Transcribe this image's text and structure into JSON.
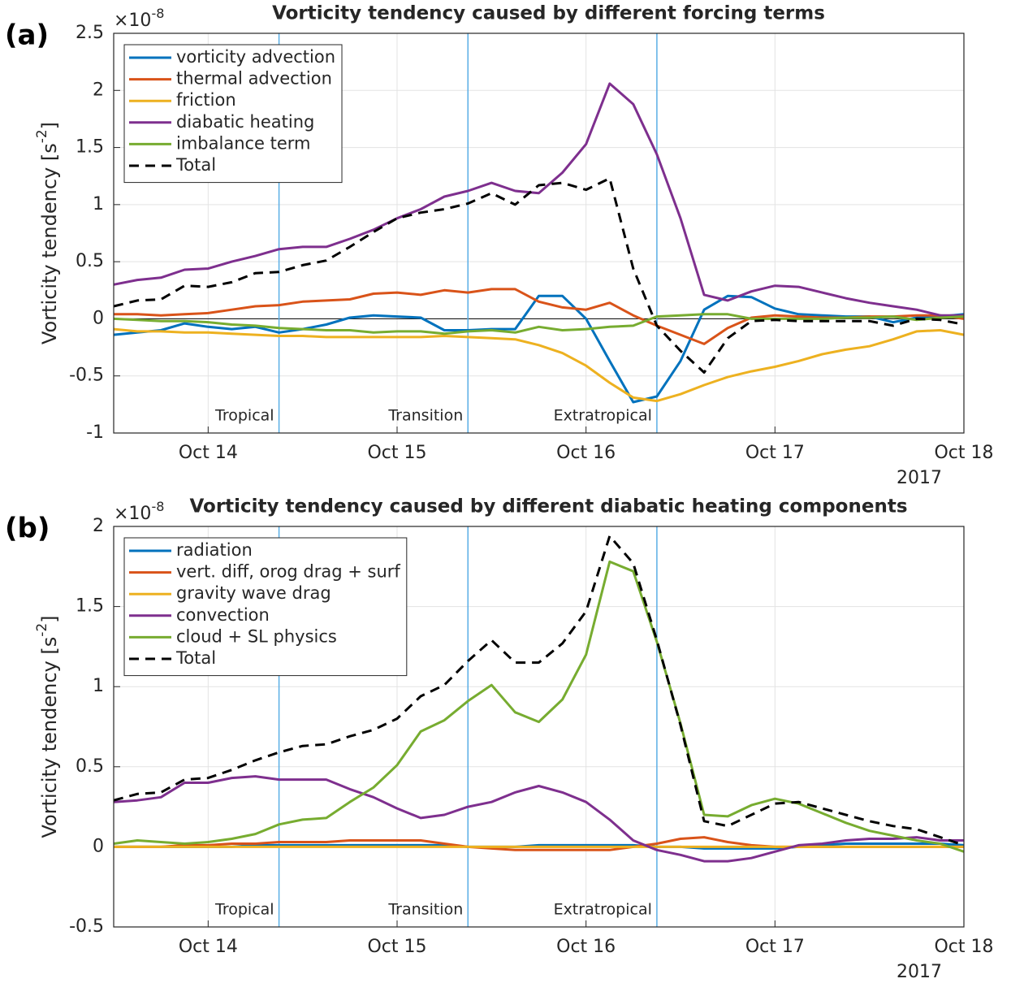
{
  "chart_data": [
    {
      "type": "line",
      "panel_label": "(a)",
      "title": "Vorticity tendency caused by different forcing terms",
      "y_scale_label": "×10",
      "y_scale_exponent": "-8",
      "ylabel": "Vorticity tendency [s",
      "ylabel_exponent": "-2",
      "ylabel_suffix": "]",
      "xlabel": "2017",
      "x": [
        13.5,
        13.625,
        13.75,
        13.875,
        14,
        14.125,
        14.25,
        14.375,
        14.5,
        14.625,
        14.75,
        14.875,
        15,
        15.125,
        15.25,
        15.375,
        15.5,
        15.625,
        15.75,
        15.875,
        16,
        16.125,
        16.25,
        16.375,
        16.5,
        16.625,
        16.75,
        16.875,
        17,
        17.125,
        17.25,
        17.375,
        17.5,
        17.625,
        17.75,
        17.875,
        18
      ],
      "xlim": [
        13.5,
        18
      ],
      "xticks": [
        {
          "value": 14,
          "label": "Oct 14"
        },
        {
          "value": 15,
          "label": "Oct 15"
        },
        {
          "value": 16,
          "label": "Oct 16"
        },
        {
          "value": 17,
          "label": "Oct 17"
        },
        {
          "value": 18,
          "label": "Oct 18"
        }
      ],
      "ylim": [
        -1,
        2.5
      ],
      "yticks": [
        -1,
        -0.5,
        0,
        0.5,
        1,
        1.5,
        2,
        2.5
      ],
      "grid": true,
      "legend": "upper-left",
      "hlines": [
        0
      ],
      "vlines": [
        14.375,
        15.375,
        16.375
      ],
      "phases": [
        "Tropical",
        "Transition",
        "Extratropical"
      ],
      "series": [
        {
          "name": "vorticity advection",
          "color": "#0072bd",
          "values": [
            -0.14,
            -0.12,
            -0.1,
            -0.04,
            -0.07,
            -0.09,
            -0.07,
            -0.12,
            -0.09,
            -0.05,
            0.01,
            0.03,
            0.02,
            0.01,
            -0.1,
            -0.1,
            -0.09,
            -0.09,
            0.2,
            0.2,
            0.0,
            -0.37,
            -0.73,
            -0.68,
            -0.37,
            0.08,
            0.2,
            0.19,
            0.09,
            0.04,
            0.03,
            0.02,
            0.02,
            -0.03,
            0.01,
            0.02,
            0.04
          ]
        },
        {
          "name": "thermal advection",
          "color": "#d95319",
          "values": [
            0.04,
            0.04,
            0.03,
            0.04,
            0.05,
            0.08,
            0.11,
            0.12,
            0.15,
            0.16,
            0.17,
            0.22,
            0.23,
            0.21,
            0.25,
            0.23,
            0.26,
            0.26,
            0.15,
            0.1,
            0.08,
            0.14,
            0.03,
            -0.06,
            -0.14,
            -0.22,
            -0.08,
            0.01,
            0.03,
            0.02,
            0.01,
            0.01,
            0.02,
            0.02,
            0.03,
            0.03,
            0.0
          ]
        },
        {
          "name": "friction",
          "color": "#edb120",
          "values": [
            -0.09,
            -0.11,
            -0.11,
            -0.12,
            -0.12,
            -0.13,
            -0.14,
            -0.15,
            -0.15,
            -0.16,
            -0.16,
            -0.16,
            -0.16,
            -0.16,
            -0.15,
            -0.16,
            -0.17,
            -0.18,
            -0.23,
            -0.3,
            -0.41,
            -0.56,
            -0.69,
            -0.72,
            -0.66,
            -0.58,
            -0.51,
            -0.46,
            -0.42,
            -0.37,
            -0.31,
            -0.27,
            -0.24,
            -0.18,
            -0.11,
            -0.1,
            -0.14
          ]
        },
        {
          "name": "diabatic heating",
          "color": "#7e2f8e",
          "values": [
            0.3,
            0.34,
            0.36,
            0.43,
            0.44,
            0.5,
            0.55,
            0.61,
            0.63,
            0.63,
            0.7,
            0.78,
            0.88,
            0.96,
            1.07,
            1.12,
            1.19,
            1.12,
            1.1,
            1.28,
            1.53,
            2.06,
            1.88,
            1.44,
            0.88,
            0.21,
            0.16,
            0.24,
            0.29,
            0.28,
            0.23,
            0.18,
            0.14,
            0.11,
            0.08,
            0.03,
            0.03
          ]
        },
        {
          "name": "imbalance term",
          "color": "#77ac30",
          "values": [
            0.0,
            -0.01,
            -0.02,
            -0.02,
            -0.03,
            -0.05,
            -0.06,
            -0.08,
            -0.09,
            -0.1,
            -0.1,
            -0.12,
            -0.11,
            -0.11,
            -0.13,
            -0.11,
            -0.1,
            -0.12,
            -0.07,
            -0.1,
            -0.09,
            -0.07,
            -0.06,
            0.02,
            0.03,
            0.04,
            0.04,
            0.0,
            0.0,
            0.0,
            0.0,
            0.01,
            0.01,
            0.02,
            -0.01,
            0.01,
            0.02
          ]
        },
        {
          "name": "Total",
          "color": "#000000",
          "dashed": true,
          "values": [
            0.11,
            0.16,
            0.17,
            0.29,
            0.28,
            0.32,
            0.4,
            0.41,
            0.47,
            0.51,
            0.63,
            0.76,
            0.88,
            0.93,
            0.96,
            1.01,
            1.1,
            1.0,
            1.17,
            1.19,
            1.13,
            1.23,
            0.44,
            -0.06,
            -0.28,
            -0.47,
            -0.17,
            -0.02,
            -0.01,
            -0.02,
            -0.02,
            -0.02,
            -0.02,
            -0.06,
            0.0,
            -0.01,
            -0.05
          ]
        }
      ]
    },
    {
      "type": "line",
      "panel_label": "(b)",
      "title": "Vorticity tendency caused by different diabatic heating components",
      "y_scale_label": "×10",
      "y_scale_exponent": "-8",
      "ylabel": "Vorticity tendency [s",
      "ylabel_exponent": "-2",
      "ylabel_suffix": "]",
      "xlabel": "2017",
      "x": [
        13.5,
        13.625,
        13.75,
        13.875,
        14,
        14.125,
        14.25,
        14.375,
        14.5,
        14.625,
        14.75,
        14.875,
        15,
        15.125,
        15.25,
        15.375,
        15.5,
        15.625,
        15.75,
        15.875,
        16,
        16.125,
        16.25,
        16.375,
        16.5,
        16.625,
        16.75,
        16.875,
        17,
        17.125,
        17.25,
        17.375,
        17.5,
        17.625,
        17.75,
        17.875,
        18
      ],
      "xlim": [
        13.5,
        18
      ],
      "xticks": [
        {
          "value": 14,
          "label": "Oct 14"
        },
        {
          "value": 15,
          "label": "Oct 15"
        },
        {
          "value": 16,
          "label": "Oct 16"
        },
        {
          "value": 17,
          "label": "Oct 17"
        },
        {
          "value": 18,
          "label": "Oct 18"
        }
      ],
      "ylim": [
        -0.5,
        2
      ],
      "yticks": [
        -0.5,
        0,
        0.5,
        1,
        1.5,
        2
      ],
      "grid": true,
      "legend": "upper-left",
      "hlines": [
        0
      ],
      "vlines": [
        14.375,
        15.375,
        16.375
      ],
      "phases": [
        "Tropical",
        "Transition",
        "Extratropical"
      ],
      "series": [
        {
          "name": "radiation",
          "color": "#0072bd",
          "values": [
            0.0,
            0.0,
            0.0,
            0.0,
            0.0,
            0.0,
            0.01,
            0.01,
            0.01,
            0.01,
            0.01,
            0.01,
            0.01,
            0.01,
            0.01,
            0.0,
            0.0,
            0.0,
            0.01,
            0.01,
            0.01,
            0.01,
            0.01,
            0.0,
            0.0,
            -0.01,
            -0.01,
            -0.01,
            -0.01,
            0.0,
            0.01,
            0.02,
            0.02,
            0.02,
            0.02,
            0.02,
            0.01
          ]
        },
        {
          "name": "vert. diff, orog drag + surf",
          "color": "#d95319",
          "values": [
            0.0,
            0.0,
            0.0,
            0.01,
            0.01,
            0.02,
            0.02,
            0.03,
            0.03,
            0.03,
            0.04,
            0.04,
            0.04,
            0.04,
            0.02,
            0.0,
            -0.01,
            -0.02,
            -0.02,
            -0.02,
            -0.02,
            -0.02,
            0.0,
            0.02,
            0.05,
            0.06,
            0.03,
            0.01,
            0.0,
            0.0,
            0.0,
            0.0,
            0.0,
            0.0,
            0.0,
            0.0,
            0.0
          ]
        },
        {
          "name": "gravity wave drag",
          "color": "#edb120",
          "values": [
            0,
            0,
            0,
            0,
            0,
            0,
            0,
            0,
            0,
            0,
            0,
            0,
            0,
            0,
            0,
            0,
            0,
            0,
            0,
            0,
            0,
            0,
            0,
            0,
            0,
            0,
            0,
            0,
            0,
            0,
            0,
            0,
            0,
            0,
            0,
            0,
            0
          ]
        },
        {
          "name": "convection",
          "color": "#7e2f8e",
          "values": [
            0.28,
            0.29,
            0.31,
            0.4,
            0.4,
            0.43,
            0.44,
            0.42,
            0.42,
            0.42,
            0.36,
            0.31,
            0.24,
            0.18,
            0.2,
            0.25,
            0.28,
            0.34,
            0.38,
            0.34,
            0.28,
            0.17,
            0.04,
            -0.02,
            -0.05,
            -0.09,
            -0.09,
            -0.07,
            -0.03,
            0.01,
            0.02,
            0.04,
            0.05,
            0.05,
            0.06,
            0.04,
            0.04
          ]
        },
        {
          "name": "cloud + SL physics",
          "color": "#77ac30",
          "values": [
            0.02,
            0.04,
            0.03,
            0.02,
            0.03,
            0.05,
            0.08,
            0.14,
            0.17,
            0.18,
            0.28,
            0.37,
            0.51,
            0.72,
            0.79,
            0.91,
            1.01,
            0.84,
            0.78,
            0.92,
            1.2,
            1.78,
            1.72,
            1.28,
            0.77,
            0.2,
            0.19,
            0.26,
            0.3,
            0.27,
            0.21,
            0.15,
            0.1,
            0.07,
            0.04,
            0.02,
            -0.03
          ]
        },
        {
          "name": "Total",
          "color": "#000000",
          "dashed": true,
          "values": [
            0.29,
            0.33,
            0.34,
            0.42,
            0.43,
            0.48,
            0.54,
            0.59,
            0.63,
            0.64,
            0.69,
            0.73,
            0.8,
            0.94,
            1.01,
            1.16,
            1.29,
            1.15,
            1.15,
            1.27,
            1.47,
            1.94,
            1.77,
            1.29,
            0.76,
            0.16,
            0.13,
            0.2,
            0.27,
            0.28,
            0.24,
            0.2,
            0.16,
            0.13,
            0.11,
            0.06,
            0.01
          ]
        }
      ]
    }
  ]
}
